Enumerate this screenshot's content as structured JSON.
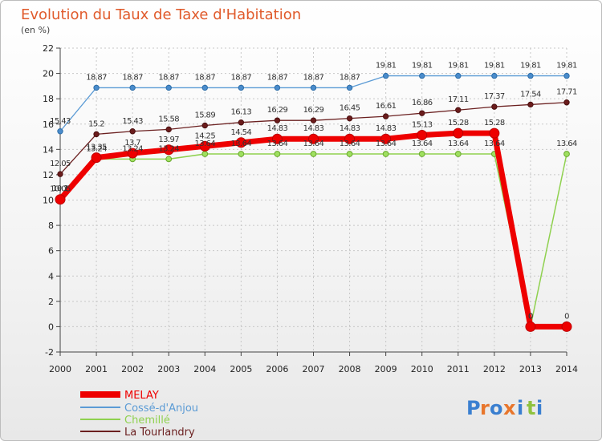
{
  "chart_data": {
    "type": "line",
    "title": "Evolution du Taux de Taxe d'Habitation",
    "ylabel": "(en %)",
    "categories": [
      "2000",
      "2001",
      "2002",
      "2003",
      "2004",
      "2005",
      "2006",
      "2007",
      "2008",
      "2009",
      "2010",
      "2011",
      "2012",
      "2013",
      "2014"
    ],
    "ylim": [
      -2,
      22
    ],
    "yticks": [
      "-2",
      "0",
      "2",
      "4",
      "6",
      "8",
      "10",
      "12",
      "14",
      "16",
      "18",
      "20",
      "22"
    ],
    "grid": true,
    "legend_position": "bottom-left",
    "series": [
      {
        "name": "MELAY",
        "color": "#ee0000",
        "values": [
          10.05,
          13.35,
          13.7,
          13.97,
          14.25,
          14.54,
          14.83,
          14.83,
          14.83,
          14.83,
          15.13,
          15.28,
          15.28,
          0,
          0
        ],
        "labels": [
          "10.05",
          "13.35",
          "13.7",
          "13.97",
          "14.25",
          "14.54",
          "14.83",
          "14.83",
          "14.83",
          "14.83",
          "15.13",
          "15.28",
          "15.28",
          "0",
          "0"
        ]
      },
      {
        "name": "Cossé-d'Anjou",
        "color": "#5b9bd5",
        "values": [
          15.43,
          18.87,
          18.87,
          18.87,
          18.87,
          18.87,
          18.87,
          18.87,
          18.87,
          19.81,
          19.81,
          19.81,
          19.81,
          19.81,
          19.81
        ],
        "labels": [
          "15.43",
          "18.87",
          "18.87",
          "18.87",
          "18.87",
          "18.87",
          "18.87",
          "18.87",
          "18.87",
          "19.81",
          "19.81",
          "19.81",
          "19.81",
          "19.81",
          "19.81"
        ]
      },
      {
        "name": "Chemillé",
        "color": "#8fd14f",
        "values": [
          10.1,
          13.24,
          13.24,
          13.24,
          13.64,
          13.64,
          13.64,
          13.64,
          13.64,
          13.64,
          13.64,
          13.64,
          13.64,
          0,
          13.64
        ],
        "labels": [
          "10.1",
          "13.24",
          "13.24",
          "13.24",
          "13.64",
          "13.64",
          "13.64",
          "13.64",
          "13.64",
          "13.64",
          "13.64",
          "13.64",
          "13.64",
          "0",
          "13.64"
        ]
      },
      {
        "name": "La Tourlandry",
        "color": "#6b2020",
        "values": [
          12.05,
          15.2,
          15.43,
          15.58,
          15.89,
          16.13,
          16.29,
          16.29,
          16.45,
          16.61,
          16.86,
          17.11,
          17.37,
          17.54,
          17.71
        ],
        "labels": [
          "12.05",
          "15.2",
          "15.43",
          "15.58",
          "15.89",
          "16.13",
          "16.29",
          "16.29",
          "16.45",
          "16.61",
          "16.86",
          "17.11",
          "17.37",
          "17.54",
          "17.71"
        ]
      }
    ]
  },
  "logo": {
    "letters": [
      "P",
      "r",
      "o",
      "x",
      "i",
      "t",
      "i"
    ],
    "colors": [
      "#3a7fd0",
      "#e8762c",
      "#3a7fd0",
      "#e8762c",
      "#3a7fd0",
      "#8fc23f",
      "#3a7fd0"
    ]
  }
}
